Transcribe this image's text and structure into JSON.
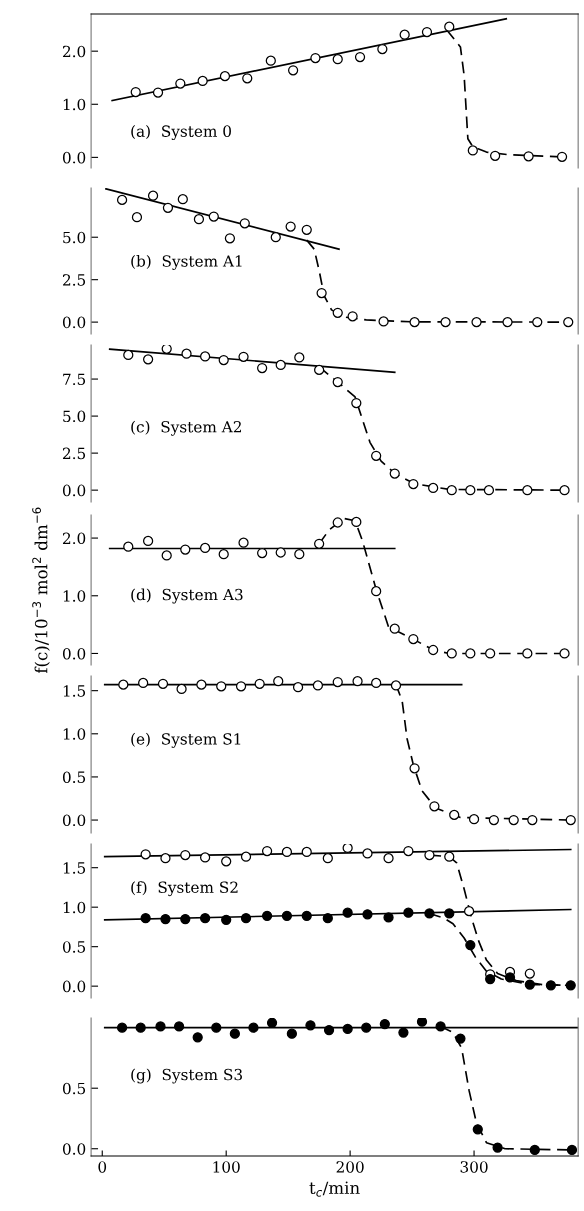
{
  "chart_data": [
    {
      "type": "scatter",
      "annotations": [
        "(a)  System 0"
      ],
      "xlim": [
        -9,
        384
      ],
      "xticks": [
        0,
        100,
        200,
        300
      ],
      "ylim": [
        -0.2,
        2.7
      ],
      "yticks": [
        {
          "value": 0,
          "label": "0.0"
        },
        {
          "value": 1,
          "label": "1.0"
        },
        {
          "value": 2,
          "label": "2.0"
        }
      ],
      "tick_labels": "y",
      "grid": false,
      "legend": false,
      "series": [
        {
          "type": "scatter",
          "marker": "circle",
          "color": "#ffffff",
          "x": [
            27,
            45,
            63,
            81,
            99,
            117,
            136,
            154,
            172,
            190,
            208,
            226,
            244,
            262,
            280,
            299,
            317,
            344,
            371
          ],
          "values": [
            1.23,
            1.22,
            1.39,
            1.44,
            1.53,
            1.49,
            1.82,
            1.64,
            1.87,
            1.85,
            1.89,
            2.04,
            2.31,
            2.36,
            2.46,
            0.13,
            0.03,
            0.02,
            0.01
          ]
        },
        {
          "type": "line",
          "line_style": "solid",
          "color": "#000000",
          "x": [
            8,
            326
          ],
          "values": [
            1.07,
            2.61
          ]
        },
        {
          "type": "line",
          "line_style": "dashed",
          "color": "#000000",
          "x": [
            278,
            289,
            292,
            295,
            299,
            310,
            328,
            371
          ],
          "values": [
            2.4,
            2.08,
            1.54,
            0.35,
            0.2,
            0.1,
            0.05,
            0.01
          ]
        }
      ]
    },
    {
      "type": "scatter",
      "annotations": [
        "(b)  System A1"
      ],
      "xlim": [
        -9,
        384
      ],
      "xticks": [
        0,
        100,
        200,
        300
      ],
      "ylim": [
        -0.7,
        7.9
      ],
      "yticks": [
        {
          "value": 0,
          "label": "0.0"
        },
        2.5,
        {
          "value": 5,
          "label": "5.0"
        }
      ],
      "tick_labels": "y",
      "grid": false,
      "legend": false,
      "series": [
        {
          "type": "scatter",
          "marker": "circle",
          "color": "#ffffff",
          "x": [
            16,
            28,
            41,
            53,
            65,
            78,
            90,
            103,
            115,
            140,
            152,
            165,
            177,
            190,
            202,
            227,
            252,
            277,
            302,
            327,
            351,
            376
          ],
          "values": [
            7.2,
            6.18,
            7.45,
            6.73,
            7.24,
            6.06,
            6.22,
            4.94,
            5.82,
            5.0,
            5.63,
            5.44,
            1.71,
            0.55,
            0.34,
            0.04,
            0,
            0,
            0,
            0,
            0,
            0
          ]
        },
        {
          "type": "line",
          "line_style": "solid",
          "color": "#000000",
          "x": [
            3,
            191
          ],
          "values": [
            7.85,
            4.3
          ]
        },
        {
          "type": "line",
          "line_style": "dashed",
          "color": "#000000",
          "x": [
            165,
            171,
            175,
            179,
            185,
            195,
            213,
            249,
            376
          ],
          "values": [
            4.83,
            4.3,
            3.04,
            1.56,
            0.72,
            0.3,
            0.13,
            0.02,
            0
          ]
        }
      ]
    },
    {
      "type": "scatter",
      "annotations": [
        "(c)  System A2"
      ],
      "xlim": [
        -9,
        384
      ],
      "xticks": [
        0,
        100,
        200,
        300
      ],
      "ylim": [
        -0.8,
        9.8
      ],
      "yticks": [
        {
          "value": 0,
          "label": "0.0"
        },
        2.5,
        {
          "value": 5,
          "label": "5.0"
        },
        7.5
      ],
      "tick_labels": "y",
      "grid": false,
      "legend": false,
      "series": [
        {
          "type": "scatter",
          "marker": "circle",
          "color": "#ffffff",
          "x": [
            21,
            37,
            52,
            68,
            83,
            98,
            114,
            129,
            144,
            159,
            175,
            190,
            205,
            221,
            236,
            251,
            267,
            282,
            297,
            312,
            343,
            373
          ],
          "values": [
            9.13,
            8.83,
            9.54,
            9.21,
            9.03,
            8.78,
            9.0,
            8.24,
            8.45,
            8.96,
            8.12,
            7.3,
            5.88,
            2.32,
            1.12,
            0.41,
            0.15,
            0,
            0,
            0,
            0,
            0
          ]
        },
        {
          "type": "line",
          "line_style": "solid",
          "color": "#000000",
          "x": [
            6,
            236
          ],
          "values": [
            9.52,
            7.96
          ]
        },
        {
          "type": "line",
          "line_style": "dashed",
          "color": "#000000",
          "x": [
            175,
            190,
            204,
            209,
            216,
            225,
            237,
            252,
            280,
            373
          ],
          "values": [
            8.32,
            7.3,
            6.29,
            5.01,
            3.23,
            1.96,
            1.07,
            0.43,
            0.05,
            0
          ]
        }
      ]
    },
    {
      "type": "scatter",
      "annotations": [
        "(d)  System A3"
      ],
      "ylabel": "f(c)/10$^{−3}$ mol$^{2}$ dm$^{−6}$",
      "xlim": [
        -9,
        384
      ],
      "xticks": [
        0,
        100,
        200,
        300
      ],
      "ylim": [
        -0.2,
        2.4
      ],
      "yticks": [
        {
          "value": 0,
          "label": "0.0"
        },
        {
          "value": 1,
          "label": "1.0"
        },
        {
          "value": 2,
          "label": "2.0"
        }
      ],
      "tick_labels": "y",
      "grid": false,
      "legend": false,
      "series": [
        {
          "type": "scatter",
          "marker": "circle",
          "color": "#ffffff",
          "x": [
            21,
            37,
            52,
            67,
            83,
            98,
            114,
            129,
            144,
            159,
            175,
            190,
            205,
            221,
            236,
            251,
            267,
            282,
            297,
            313,
            343,
            373
          ],
          "values": [
            1.85,
            1.95,
            1.7,
            1.8,
            1.83,
            1.72,
            1.92,
            1.74,
            1.75,
            1.72,
            1.9,
            2.27,
            2.28,
            1.08,
            0.43,
            0.25,
            0.06,
            0,
            0,
            0,
            0,
            0
          ]
        },
        {
          "type": "line",
          "line_style": "solid",
          "color": "#000000",
          "x": [
            6,
            236
          ],
          "values": [
            1.82,
            1.82
          ]
        },
        {
          "type": "line",
          "line_style": "dashed",
          "color": "#000000",
          "x": [
            175,
            183,
            195,
            204,
            210,
            221,
            231,
            249,
            268,
            280,
            373
          ],
          "values": [
            1.9,
            2.14,
            2.34,
            2.3,
            1.95,
            1.11,
            0.46,
            0.27,
            0.05,
            0,
            0
          ]
        }
      ]
    },
    {
      "type": "scatter",
      "annotations": [
        "(e)  System S1"
      ],
      "xlim": [
        -9,
        384
      ],
      "xticks": [
        0,
        100,
        200,
        300
      ],
      "ylim": [
        -0.15,
        1.67
      ],
      "yticks": [
        {
          "value": 0,
          "label": "0.0"
        },
        0.5,
        {
          "value": 1,
          "label": "1.0"
        },
        1.5
      ],
      "tick_labels": "y",
      "grid": false,
      "legend": false,
      "series": [
        {
          "type": "scatter",
          "marker": "circle",
          "color": "#ffffff",
          "x": [
            17,
            33,
            49,
            64,
            80,
            96,
            112,
            127,
            142,
            158,
            174,
            190,
            206,
            221,
            237,
            252,
            268,
            284,
            300,
            316,
            332,
            347,
            378
          ],
          "values": [
            1.57,
            1.59,
            1.58,
            1.52,
            1.57,
            1.55,
            1.55,
            1.58,
            1.61,
            1.54,
            1.56,
            1.6,
            1.61,
            1.59,
            1.56,
            0.6,
            0.16,
            0.06,
            0.01,
            0,
            0,
            0,
            0
          ]
        },
        {
          "type": "line",
          "line_style": "solid",
          "color": "#000000",
          "x": [
            2,
            290
          ],
          "values": [
            1.57,
            1.57
          ]
        },
        {
          "type": "line",
          "line_style": "dashed",
          "color": "#000000",
          "x": [
            237,
            242,
            246,
            251,
            258,
            269,
            289,
            378
          ],
          "values": [
            1.57,
            1.38,
            0.94,
            0.64,
            0.34,
            0.14,
            0.03,
            0
          ]
        }
      ]
    },
    {
      "type": "scatter",
      "annotations": [
        "(f)  System S2"
      ],
      "xlim": [
        -9,
        384
      ],
      "xticks": [
        0,
        100,
        200,
        300
      ],
      "ylim": [
        -0.15,
        1.8
      ],
      "yticks": [
        {
          "value": 0,
          "label": "0.0"
        },
        0.5,
        {
          "value": 1,
          "label": "1.0"
        },
        1.5
      ],
      "tick_labels": "y",
      "grid": false,
      "legend": false,
      "series": [
        {
          "type": "scatter",
          "marker": "circle",
          "color": "#ffffff",
          "x": [
            35,
            51,
            67,
            83,
            100,
            116,
            133,
            149,
            165,
            182,
            198,
            214,
            231,
            247,
            264,
            280,
            296,
            313,
            329,
            345
          ],
          "values": [
            1.67,
            1.62,
            1.66,
            1.63,
            1.58,
            1.64,
            1.71,
            1.7,
            1.7,
            1.62,
            1.75,
            1.68,
            1.62,
            1.71,
            1.66,
            1.64,
            0.95,
            0.15,
            0.18,
            0.16
          ]
        },
        {
          "type": "scatter",
          "marker": "circle",
          "color": "#000000",
          "x": [
            35,
            51,
            67,
            83,
            100,
            116,
            133,
            149,
            165,
            182,
            198,
            214,
            231,
            247,
            264,
            280,
            297,
            313,
            329,
            345,
            362,
            378
          ],
          "values": [
            0.86,
            0.85,
            0.85,
            0.86,
            0.84,
            0.86,
            0.89,
            0.89,
            0.89,
            0.86,
            0.93,
            0.91,
            0.87,
            0.93,
            0.92,
            0.92,
            0.52,
            0.09,
            0.11,
            0.02,
            0.01,
            0.01
          ]
        },
        {
          "type": "line",
          "line_style": "solid",
          "color": "#000000",
          "x": [
            2,
            378
          ],
          "values": [
            1.64,
            1.73
          ]
        },
        {
          "type": "line",
          "line_style": "solid",
          "color": "#000000",
          "x": [
            2,
            378
          ],
          "values": [
            0.84,
            0.97
          ]
        },
        {
          "type": "line",
          "line_style": "dashed",
          "color": "#000000",
          "x": [
            264,
            280,
            286,
            292,
            298,
            304,
            310,
            319,
            334,
            355,
            378
          ],
          "values": [
            1.66,
            1.64,
            1.56,
            1.23,
            0.86,
            0.56,
            0.33,
            0.16,
            0.07,
            0.02,
            0.01
          ]
        },
        {
          "type": "line",
          "line_style": "dashed",
          "color": "#000000",
          "x": [
            264,
            276,
            283,
            292,
            301,
            310,
            322,
            346,
            378
          ],
          "values": [
            0.92,
            0.86,
            0.79,
            0.61,
            0.37,
            0.19,
            0.09,
            0.02,
            0.01
          ]
        }
      ]
    },
    {
      "type": "scatter",
      "annotations": [
        "(g)  System S3"
      ],
      "xlabel": "t$_{c}$/min",
      "xlim": [
        -9,
        384
      ],
      "xticks": [
        0,
        100,
        200,
        300
      ],
      "ylim": [
        -0.06,
        1.08
      ],
      "yticks": [
        {
          "value": 0,
          "label": "0.0"
        },
        0.5
      ],
      "grid": false,
      "legend": false,
      "series": [
        {
          "type": "scatter",
          "marker": "circle",
          "color": "#000000",
          "x": [
            16,
            31,
            47,
            62,
            77,
            92,
            107,
            122,
            137,
            153,
            168,
            183,
            198,
            213,
            228,
            243,
            258,
            273,
            289,
            303,
            319,
            349,
            379
          ],
          "values": [
            1.0,
            1.0,
            1.01,
            1.01,
            0.92,
            1.0,
            0.95,
            1.0,
            1.04,
            0.95,
            1.02,
            0.98,
            0.99,
            1.0,
            1.03,
            0.96,
            1.05,
            1.01,
            0.91,
            0.16,
            0.01,
            -0.01,
            -0.01
          ]
        },
        {
          "type": "line",
          "line_style": "solid",
          "color": "#000000",
          "x": [
            2,
            384
          ],
          "values": [
            1.0,
            1.0
          ]
        },
        {
          "type": "line",
          "line_style": "dashed",
          "color": "#000000",
          "x": [
            273,
            283,
            290,
            296,
            302,
            310,
            325,
            379
          ],
          "values": [
            1.01,
            0.96,
            0.83,
            0.48,
            0.21,
            0.05,
            0,
            -0.01
          ]
        }
      ]
    }
  ]
}
